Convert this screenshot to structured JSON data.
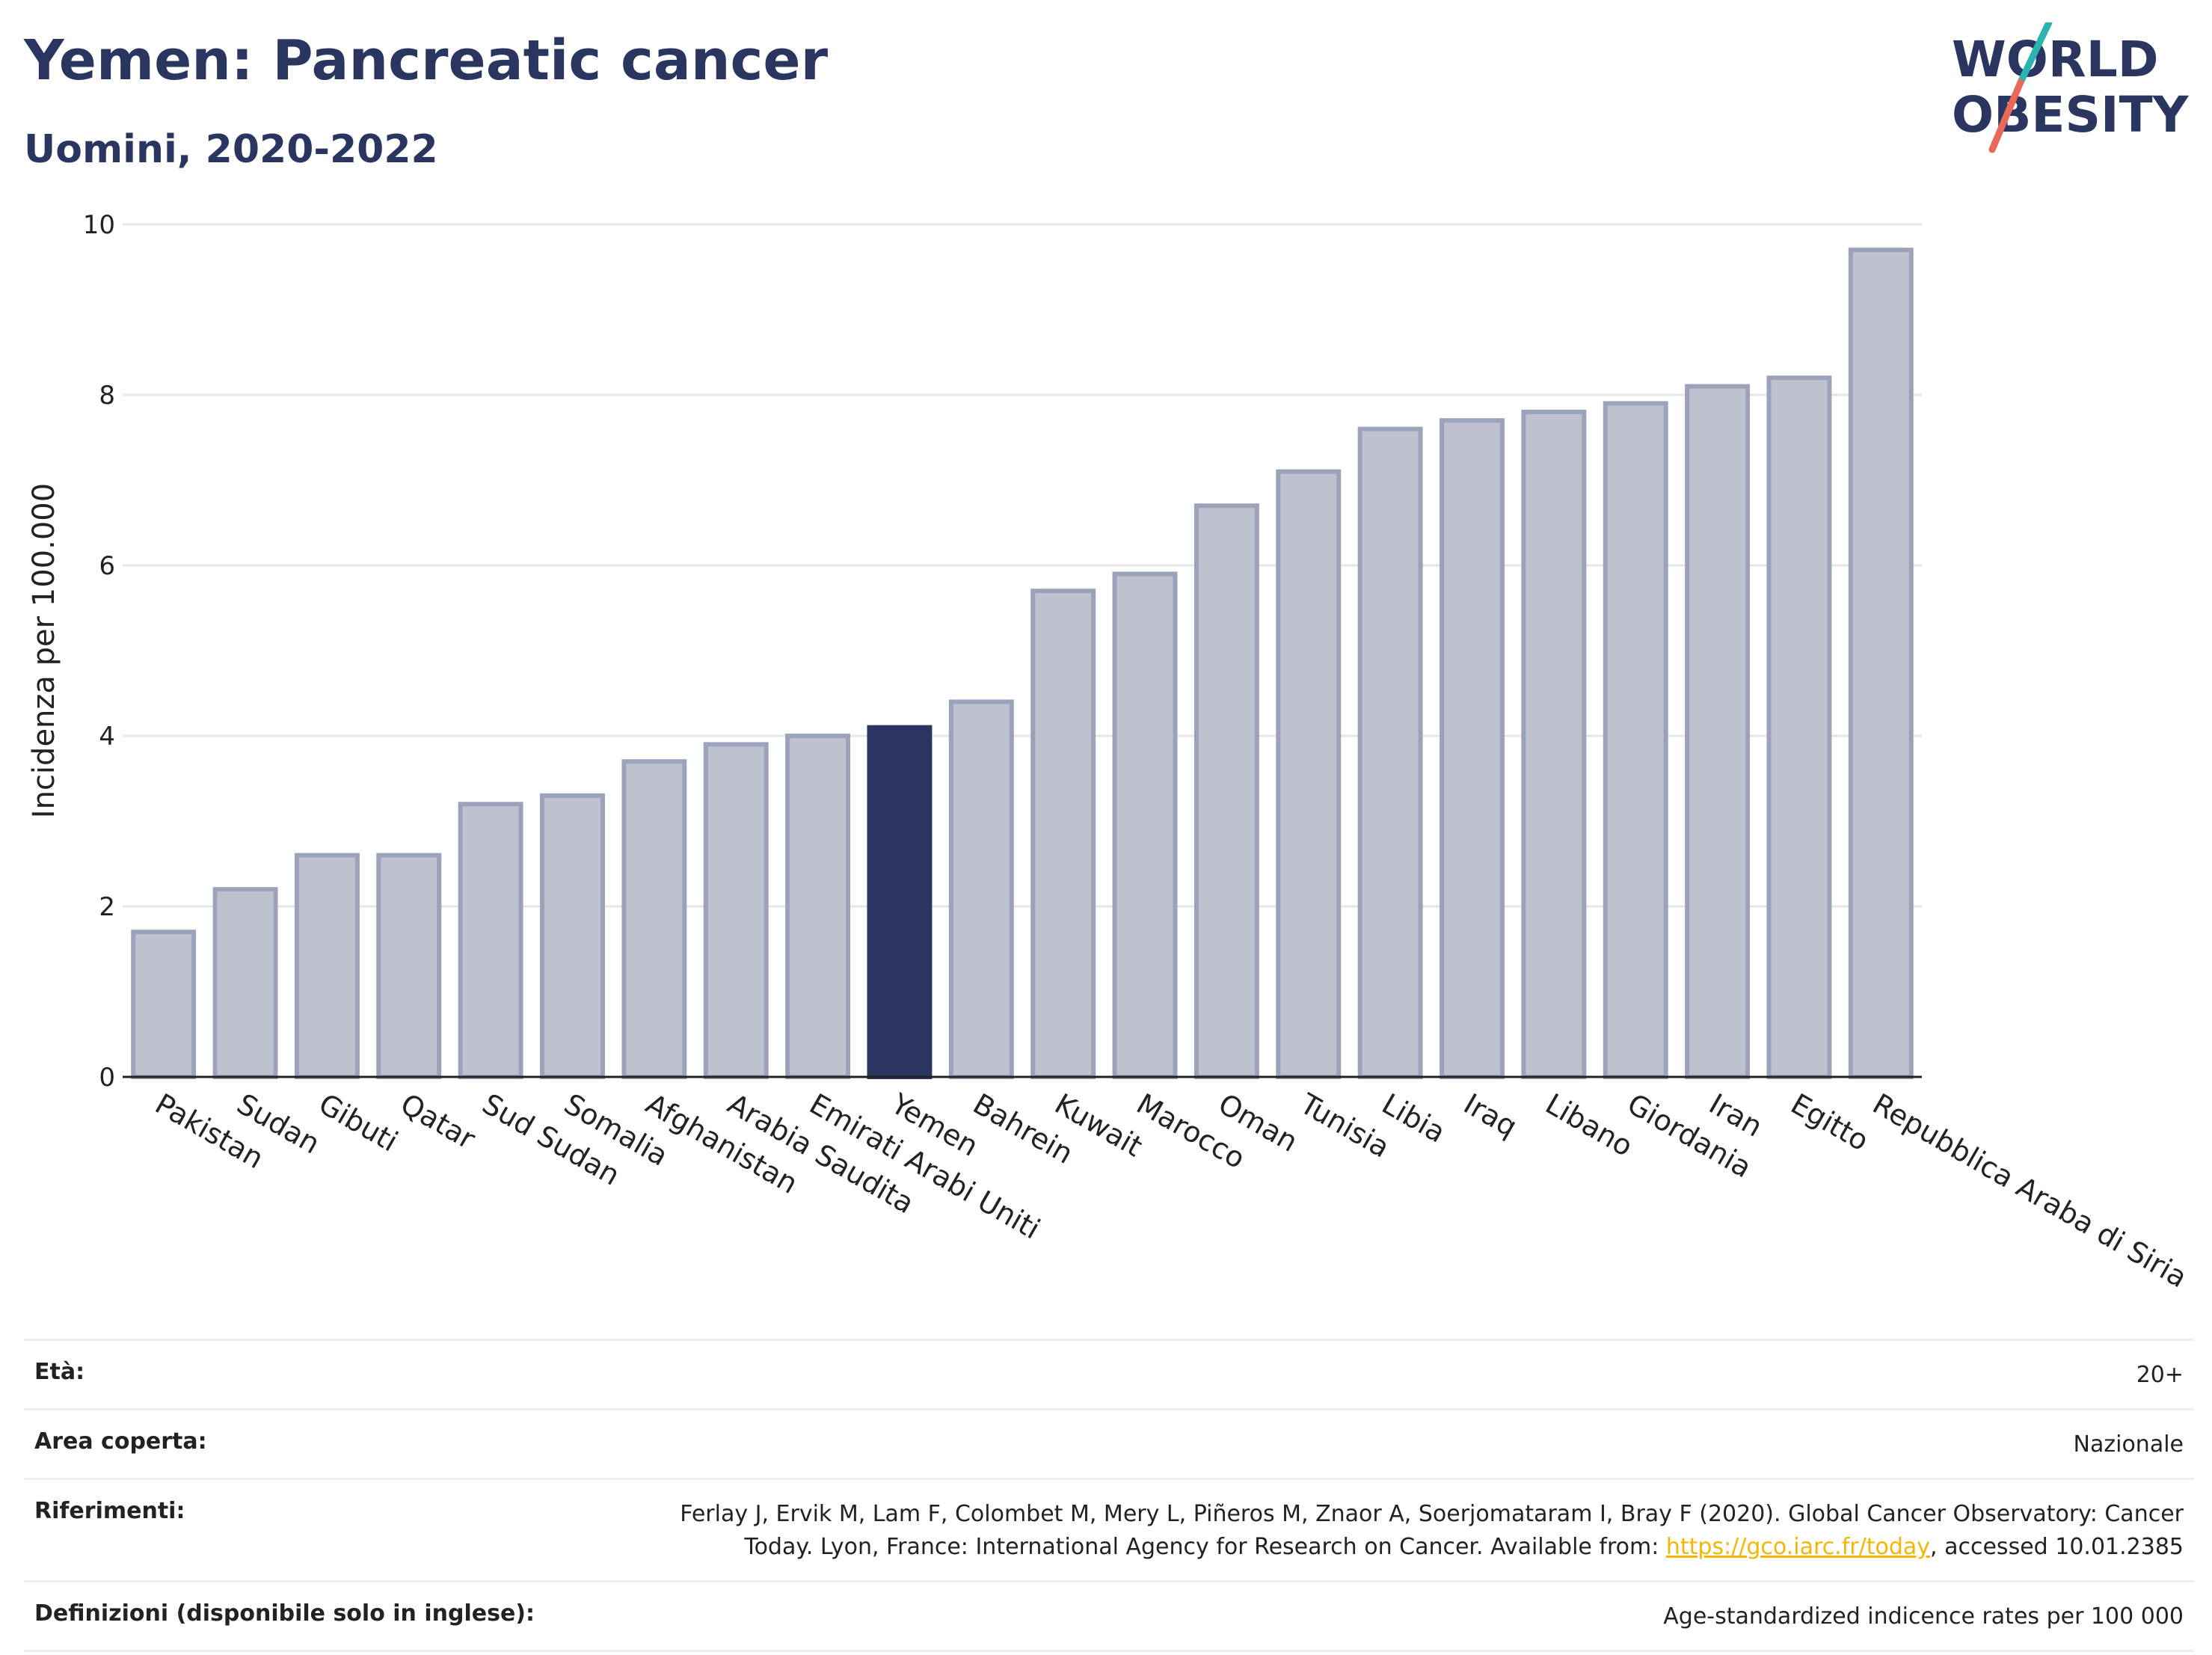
{
  "header": {
    "title": "Yemen: Pancreatic cancer",
    "subtitle": "Uomini, 2020-2022"
  },
  "logo": {
    "line1": "WORLD",
    "line2": "OBESITY"
  },
  "colors": {
    "highlight": "#2b3562",
    "bar_fill": "#bec1ce",
    "bar_stroke": "#9ca2b9",
    "grid": "#e6e6ea",
    "title": "#2a3560",
    "link": "#f2b705",
    "logo_teal": "#2bb3b0",
    "logo_coral": "#e8685a"
  },
  "chart_data": {
    "type": "bar",
    "title": "",
    "xlabel": "",
    "ylabel": "Incidenza per 100.000",
    "ylim": [
      0,
      10
    ],
    "yticks": [
      0,
      2,
      4,
      6,
      8,
      10
    ],
    "grid": true,
    "highlight": "Yemen",
    "categories": [
      "Pakistan",
      "Sudan",
      "Gibuti",
      "Qatar",
      "Sud Sudan",
      "Somalia",
      "Afghanistan",
      "Arabia Saudita",
      "Emirati Arabi Uniti",
      "Yemen",
      "Bahrein",
      "Kuwait",
      "Marocco",
      "Oman",
      "Tunisia",
      "Libia",
      "Iraq",
      "Libano",
      "Giordania",
      "Iran",
      "Egitto",
      "Repubblica Araba di Siria"
    ],
    "values": [
      1.7,
      2.2,
      2.6,
      2.6,
      3.2,
      3.3,
      3.7,
      3.9,
      4.0,
      4.1,
      4.4,
      5.7,
      5.9,
      6.7,
      7.1,
      7.6,
      7.7,
      7.8,
      7.9,
      8.1,
      8.2,
      9.7
    ]
  },
  "footer": {
    "rows": [
      {
        "label": "Età:",
        "value": "20+"
      },
      {
        "label": "Area coperta:",
        "value": "Nazionale"
      },
      {
        "label": "Riferimenti:",
        "value_pre": "Ferlay J, Ervik M, Lam F, Colombet M, Mery L, Piñeros M, Znaor A, Soerjomataram I, Bray F (2020). Global Cancer Observatory: Cancer Today. Lyon, France: International Agency for Research on Cancer. Available from: ",
        "link": "https://gco.iarc.fr/today",
        "value_post": ", accessed 10.01.2385"
      },
      {
        "label": "Definizioni (disponibile solo in inglese):",
        "value": "Age-standardized indicence rates per 100 000"
      }
    ]
  }
}
